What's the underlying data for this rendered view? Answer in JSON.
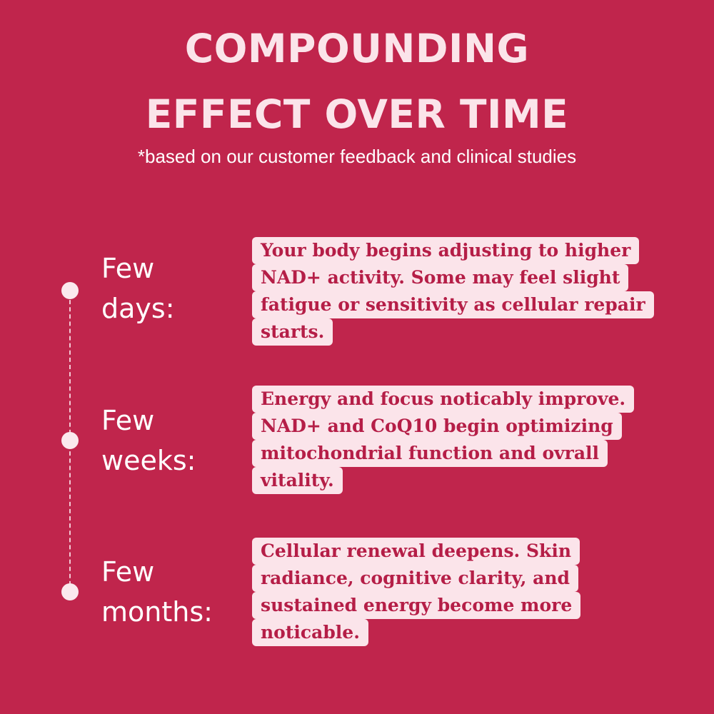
{
  "title": {
    "line1": "COMPOUNDING",
    "line2": "EFFECT OVER TIME"
  },
  "subtitle": "*based on our customer feedback and clinical studies",
  "stages": [
    {
      "label_line1": "Few",
      "label_line2": "days:",
      "description_lines": [
        "Your body begins adjusting to higher",
        "NAD+ activity. Some may feel slight",
        "fatigue or sensitivity as cellular repair",
        "starts."
      ]
    },
    {
      "label_line1": "Few",
      "label_line2": "weeks:",
      "description_lines": [
        "Energy and focus noticably improve.",
        "NAD+ and CoQ10 begin optimizing",
        "mitochondrial function and ovrall",
        "vitality."
      ]
    },
    {
      "label_line1": "Few",
      "label_line2": "months:",
      "description_lines": [
        "Cellular renewal deepens. Skin",
        "radiance, cognitive clarity, and",
        "sustained energy become more",
        "noticable."
      ]
    }
  ],
  "colors": {
    "background": "#c0254c",
    "title": "#fbe4ea",
    "highlight": "#fbe4ea",
    "description_text": "#b51e47",
    "dot": "#fbe9ee"
  }
}
